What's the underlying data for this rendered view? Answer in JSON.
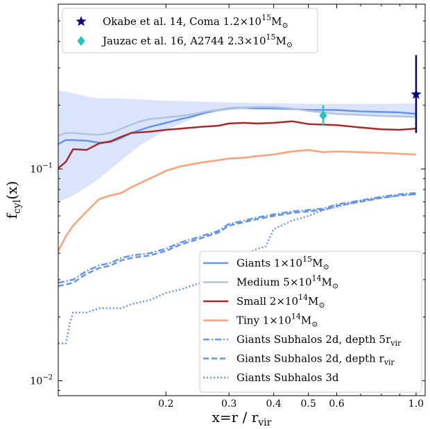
{
  "chart_data": {
    "type": "line",
    "xlabel": "x=r / r",
    "xlabel_sub": "vir",
    "ylabel": "f",
    "ylabel_sub": "cyl",
    "ylabel_tail": "(x)",
    "x_scale": "log",
    "y_scale": "log",
    "xlim": [
      0.1,
      1.06
    ],
    "ylim": [
      0.0085,
      0.6
    ],
    "x_ticks": [
      {
        "value": 0.2,
        "label": "0.2"
      },
      {
        "value": 0.3,
        "label": "0.3"
      },
      {
        "value": 0.4,
        "label": "0.4"
      },
      {
        "value": 0.5,
        "label": "0.5"
      },
      {
        "value": 0.6,
        "label": "0.6"
      },
      {
        "value": 1.0,
        "label": "1.0"
      }
    ],
    "y_ticks": [
      {
        "value": 0.1,
        "base": "10",
        "exp": "−1"
      },
      {
        "value": 0.01,
        "base": "10",
        "exp": "−2"
      }
    ],
    "grid": false,
    "band": {
      "color": "#dbe4fa",
      "x": [
        0.1,
        0.11,
        0.12,
        0.13,
        0.14,
        0.15,
        0.17,
        0.2,
        0.25,
        0.3,
        0.4,
        0.5,
        0.6,
        0.8,
        1.0
      ],
      "upper": [
        0.235,
        0.228,
        0.22,
        0.215,
        0.215,
        0.215,
        0.213,
        0.21,
        0.208,
        0.206,
        0.204,
        0.203,
        0.203,
        0.203,
        0.204
      ],
      "lower": [
        0.07,
        0.075,
        0.082,
        0.09,
        0.1,
        0.11,
        0.13,
        0.152,
        0.18,
        0.19,
        0.192,
        0.19,
        0.184,
        0.18,
        0.176
      ]
    },
    "series": [
      {
        "name": "Giants 1×10",
        "exp": "15",
        "unit": "M",
        "sub": "⊙",
        "color": "#6495ed",
        "width": 2.5,
        "dash": "",
        "x": [
          0.1,
          0.105,
          0.11,
          0.12,
          0.13,
          0.14,
          0.15,
          0.16,
          0.17,
          0.18,
          0.2,
          0.22,
          0.24,
          0.26,
          0.28,
          0.3,
          0.33,
          0.36,
          0.4,
          0.45,
          0.5,
          0.55,
          0.6,
          0.7,
          0.8,
          0.9,
          1.0
        ],
        "values": [
          0.131,
          0.137,
          0.137,
          0.136,
          0.133,
          0.134,
          0.14,
          0.148,
          0.153,
          0.158,
          0.165,
          0.172,
          0.178,
          0.185,
          0.19,
          0.193,
          0.195,
          0.193,
          0.193,
          0.192,
          0.19,
          0.19,
          0.19,
          0.187,
          0.186,
          0.185,
          0.182
        ]
      },
      {
        "name": "Medium 5×10",
        "exp": "14",
        "unit": "M",
        "sub": "⊙",
        "color": "#b0c4de",
        "width": 2.5,
        "dash": "",
        "x": [
          0.1,
          0.105,
          0.11,
          0.12,
          0.13,
          0.14,
          0.15,
          0.16,
          0.17,
          0.18,
          0.2,
          0.22,
          0.24,
          0.26,
          0.28,
          0.3,
          0.33,
          0.36,
          0.4,
          0.45,
          0.5,
          0.55,
          0.6,
          0.7,
          0.8,
          0.9,
          1.0
        ],
        "values": [
          0.143,
          0.148,
          0.148,
          0.146,
          0.145,
          0.148,
          0.155,
          0.162,
          0.168,
          0.172,
          0.175,
          0.178,
          0.182,
          0.187,
          0.19,
          0.192,
          0.195,
          0.196,
          0.196,
          0.193,
          0.188,
          0.185,
          0.182,
          0.18,
          0.178,
          0.177,
          0.176
        ]
      },
      {
        "name": "Small 2×10",
        "exp": "14",
        "unit": "M",
        "sub": "⊙",
        "color": "#a52a2a",
        "width": 2.5,
        "dash": "",
        "x": [
          0.1,
          0.105,
          0.11,
          0.12,
          0.13,
          0.14,
          0.15,
          0.16,
          0.18,
          0.2,
          0.22,
          0.25,
          0.28,
          0.3,
          0.33,
          0.36,
          0.4,
          0.45,
          0.5,
          0.55,
          0.6,
          0.7,
          0.8,
          0.9,
          1.0
        ],
        "values": [
          0.101,
          0.108,
          0.124,
          0.123,
          0.132,
          0.135,
          0.142,
          0.148,
          0.15,
          0.153,
          0.155,
          0.158,
          0.16,
          0.164,
          0.165,
          0.164,
          0.165,
          0.168,
          0.163,
          0.162,
          0.161,
          0.157,
          0.154,
          0.153,
          0.155
        ]
      },
      {
        "name": "Tiny 1×10",
        "exp": "14",
        "unit": "M",
        "sub": "⊙",
        "color": "#ffa07a",
        "width": 2.5,
        "dash": "",
        "x": [
          0.1,
          0.105,
          0.11,
          0.12,
          0.13,
          0.14,
          0.15,
          0.16,
          0.18,
          0.2,
          0.22,
          0.25,
          0.28,
          0.3,
          0.33,
          0.36,
          0.4,
          0.45,
          0.5,
          0.55,
          0.6,
          0.7,
          0.8,
          0.9,
          1.0
        ],
        "values": [
          0.041,
          0.048,
          0.054,
          0.063,
          0.072,
          0.075,
          0.077,
          0.082,
          0.09,
          0.098,
          0.103,
          0.107,
          0.11,
          0.112,
          0.113,
          0.115,
          0.117,
          0.121,
          0.123,
          0.12,
          0.121,
          0.12,
          0.119,
          0.118,
          0.117
        ]
      },
      {
        "name": "Giants Subhalos 2d, depth 5r",
        "exp": "",
        "unit": "",
        "sub": "vir",
        "color": "#6495ed",
        "width": 2.5,
        "dash": "9,3,2,3",
        "x": [
          0.1,
          0.11,
          0.12,
          0.13,
          0.14,
          0.15,
          0.16,
          0.18,
          0.2,
          0.22,
          0.25,
          0.28,
          0.3,
          0.33,
          0.36,
          0.4,
          0.45,
          0.5,
          0.55,
          0.6,
          0.7,
          0.8,
          0.9,
          1.0
        ],
        "values": [
          0.029,
          0.03,
          0.033,
          0.035,
          0.036,
          0.038,
          0.039,
          0.04,
          0.042,
          0.045,
          0.048,
          0.051,
          0.055,
          0.057,
          0.059,
          0.061,
          0.063,
          0.064,
          0.065,
          0.068,
          0.071,
          0.074,
          0.076,
          0.077
        ]
      },
      {
        "name": "Giants Subhalos 2d, depth r",
        "exp": "",
        "unit": "",
        "sub": "vir",
        "color": "#6495ed",
        "width": 2.5,
        "dash": "8,4",
        "x": [
          0.1,
          0.11,
          0.12,
          0.13,
          0.14,
          0.15,
          0.16,
          0.18,
          0.2,
          0.22,
          0.25,
          0.28,
          0.3,
          0.33,
          0.36,
          0.4,
          0.45,
          0.5,
          0.55,
          0.6,
          0.7,
          0.8,
          0.9,
          1.0
        ],
        "values": [
          0.028,
          0.029,
          0.032,
          0.034,
          0.035,
          0.037,
          0.038,
          0.039,
          0.041,
          0.044,
          0.047,
          0.05,
          0.054,
          0.056,
          0.058,
          0.06,
          0.062,
          0.063,
          0.064,
          0.067,
          0.07,
          0.073,
          0.075,
          0.076
        ]
      },
      {
        "name": "Giants Subhalos 3d",
        "exp": "",
        "unit": "",
        "sub": "",
        "color": "#6495ed",
        "width": 2.5,
        "dash": "2,3",
        "x": [
          0.1,
          0.102,
          0.105,
          0.108,
          0.11,
          0.12,
          0.13,
          0.14,
          0.15,
          0.16,
          0.18,
          0.2,
          0.22,
          0.25,
          0.28,
          0.3,
          0.33,
          0.36,
          0.38,
          0.4,
          0.42,
          0.45,
          0.5,
          0.55,
          0.6,
          0.7,
          0.8,
          0.9,
          1.0
        ],
        "values": [
          0.015,
          0.015,
          0.015,
          0.019,
          0.021,
          0.021,
          0.022,
          0.022,
          0.022,
          0.023,
          0.024,
          0.026,
          0.027,
          0.029,
          0.033,
          0.036,
          0.039,
          0.042,
          0.043,
          0.052,
          0.054,
          0.057,
          0.06,
          0.064,
          0.066,
          0.071,
          0.073,
          0.075,
          0.076
        ]
      }
    ],
    "observations": [
      {
        "name": "Okabe et al. 14, Coma 1.2×10",
        "exp": "15",
        "unit": "M",
        "sub": "⊙",
        "marker": "star",
        "color": "#000080",
        "x": 1.0,
        "y": 0.225,
        "y_low": 0.148,
        "y_high": 0.345
      },
      {
        "name": "Jauzac et al. 16, A2744 2.3×10",
        "exp": "15",
        "unit": "M",
        "sub": "⊙",
        "marker": "diamond",
        "color": "#20c4c4",
        "x": 0.55,
        "y": 0.179,
        "y_low": 0.16,
        "y_high": 0.2
      }
    ],
    "legends": [
      "top-left",
      "bottom-right"
    ]
  }
}
